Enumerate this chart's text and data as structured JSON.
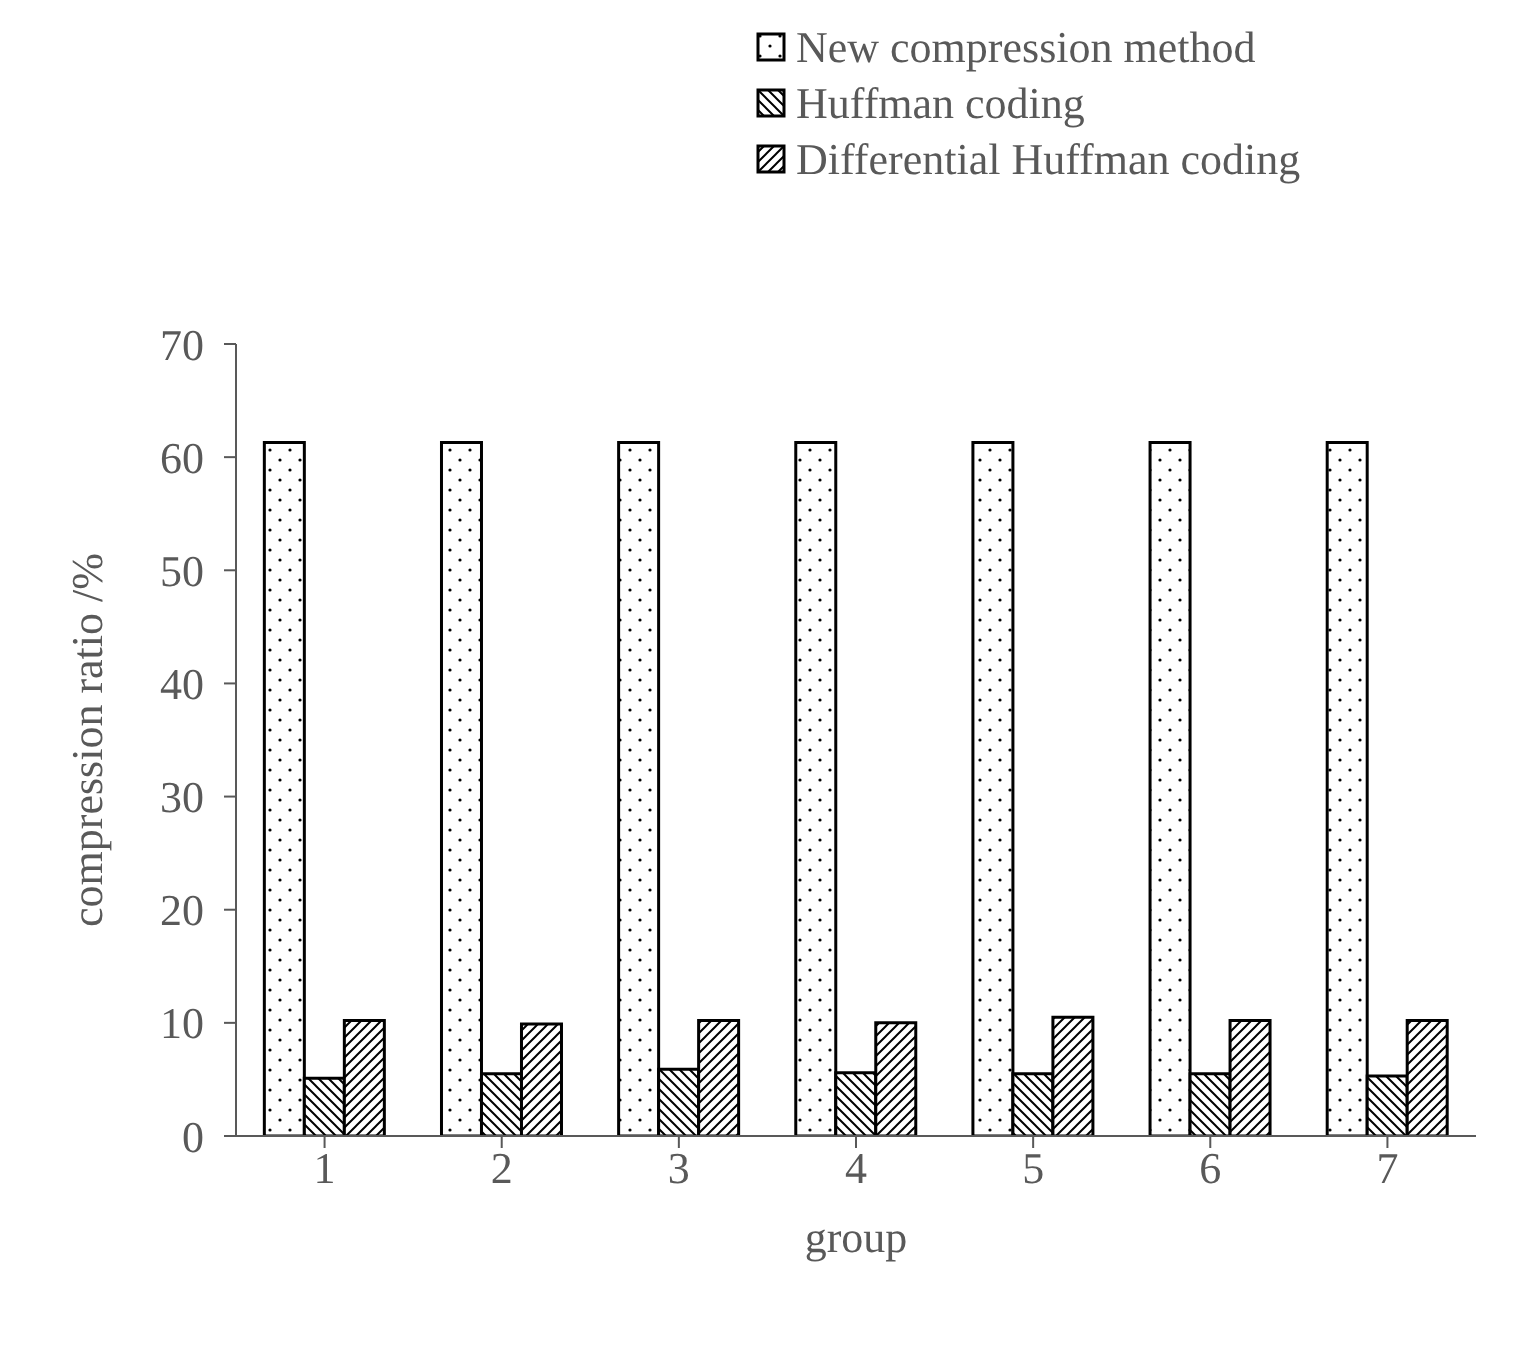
{
  "chart_data": {
    "type": "bar",
    "xlabel": "group",
    "ylabel": "compression ratio /%",
    "categories": [
      "1",
      "2",
      "3",
      "4",
      "5",
      "6",
      "7"
    ],
    "series": [
      {
        "name": "New compression method",
        "color": "#000000",
        "values": [
          61.3,
          61.3,
          61.3,
          61.3,
          61.3,
          61.3,
          61.3
        ]
      },
      {
        "name": "Huffman coding",
        "color": "#000000",
        "values": [
          5.1,
          5.5,
          5.9,
          5.6,
          5.5,
          5.5,
          5.3
        ]
      },
      {
        "name": "Differential Huffman coding",
        "color": "#000000",
        "values": [
          10.2,
          9.9,
          10.2,
          10.0,
          10.5,
          10.2,
          10.2
        ]
      }
    ],
    "ylim": [
      0,
      70
    ],
    "yticks": [
      0,
      10,
      20,
      30,
      40,
      50,
      60,
      70
    ],
    "grid": false,
    "legend": "top right"
  }
}
